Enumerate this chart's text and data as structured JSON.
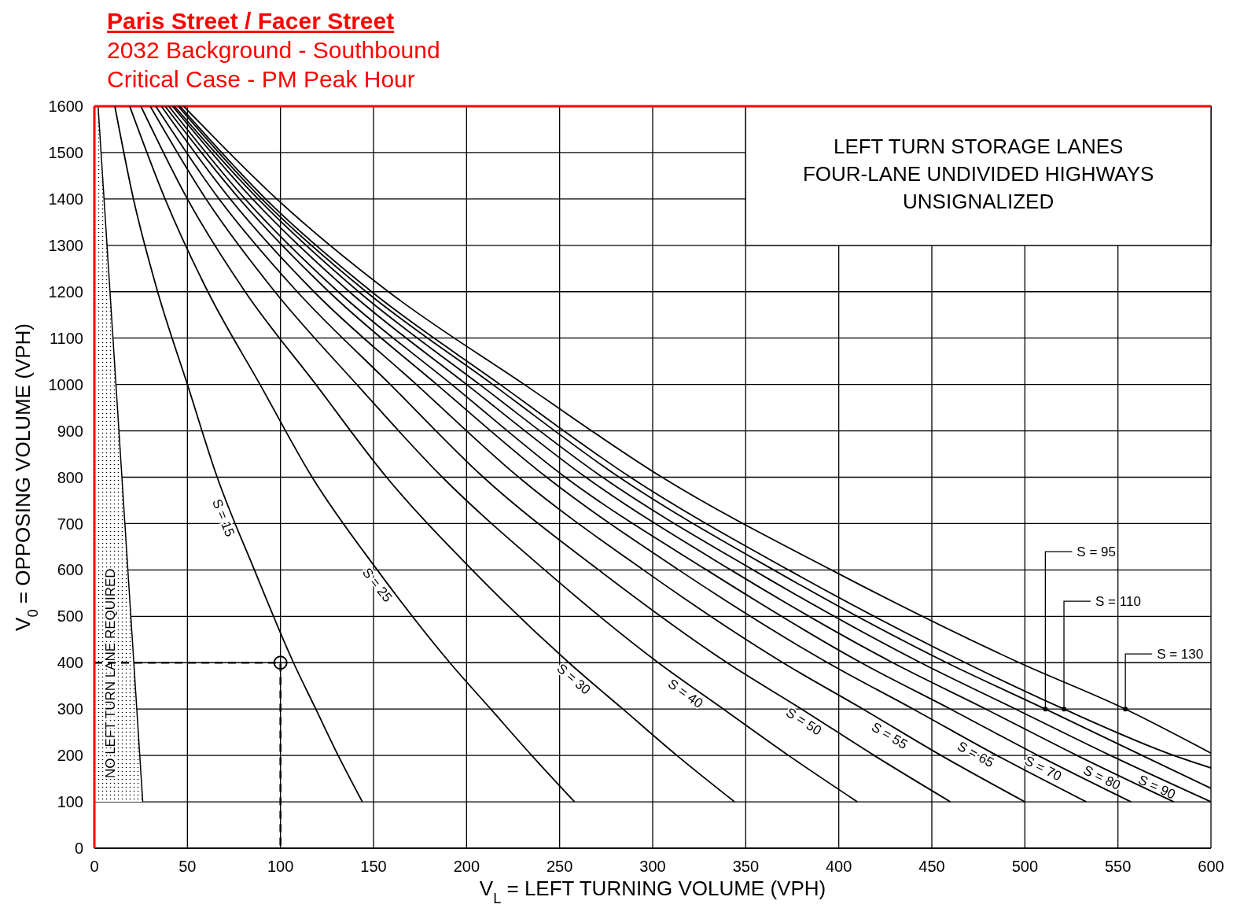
{
  "chart_data": {
    "type": "line",
    "title": "Paris Street / Facer Street",
    "subtitle": "2032 Background - Southbound\nCritical Case - PM Peak Hour",
    "xlabel": "V$_{L}$ = LEFT TURNING VOLUME (VPH)",
    "ylabel": "V$_{0}$ = OPPOSING VOLUME (VPH)",
    "annotations": [
      "LEFT TURN STORAGE LANES\nFOUR-LANE UNDIVIDED HIGHWAYS\nUNSIGNALIZED"
    ],
    "xlim": [
      0,
      600
    ],
    "xticks": [
      0,
      50,
      100,
      150,
      200,
      250,
      300,
      350,
      400,
      450,
      500,
      550,
      600
    ],
    "ylim": [
      0,
      1600
    ],
    "yticks": [
      0,
      100,
      200,
      300,
      400,
      500,
      600,
      700,
      800,
      900,
      1000,
      1100,
      1200,
      1300,
      1400,
      1500,
      1600
    ],
    "grid": true,
    "marker": "none",
    "series": [
      {
        "type": "area",
        "name": "NO LEFT TURN LANE REQUIRED",
        "color": "#000000",
        "x": [
          2,
          26
        ],
        "values": [
          1600,
          100
        ]
      },
      {
        "name": "S = 15",
        "color": "#000000",
        "x": [
          11,
          21,
          34,
          50,
          66,
          86,
          107,
          119,
          131,
          144
        ],
        "values": [
          1600,
          1400,
          1200,
          1000,
          800,
          600,
          400,
          300,
          200,
          100
        ]
      },
      {
        "name": "S = 25",
        "color": "#000000",
        "x": [
          19,
          38,
          61,
          89,
          117,
          152,
          191,
          213,
          235,
          258
        ],
        "values": [
          1600,
          1400,
          1200,
          1000,
          800,
          600,
          400,
          300,
          200,
          100
        ]
      },
      {
        "name": "S = 30",
        "color": "#000000",
        "x": [
          25,
          50,
          81,
          119,
          157,
          203,
          255,
          284,
          313,
          344
        ],
        "values": [
          1600,
          1400,
          1200,
          1000,
          800,
          600,
          400,
          300,
          200,
          100
        ]
      },
      {
        "name": "S = 40",
        "color": "#000000",
        "x": [
          30,
          60,
          97,
          141,
          187,
          242,
          303,
          338,
          373,
          410
        ],
        "values": [
          1600,
          1400,
          1200,
          1000,
          800,
          600,
          400,
          300,
          200,
          100
        ]
      },
      {
        "name": "S = 50",
        "color": "#000000",
        "x": [
          33,
          67,
          109,
          159,
          209,
          271,
          340,
          380,
          419,
          460
        ],
        "values": [
          1600,
          1400,
          1200,
          1000,
          800,
          600,
          400,
          300,
          200,
          100
        ]
      },
      {
        "name": "S = 55",
        "color": "#000000",
        "x": [
          36,
          73,
          118,
          173,
          228,
          295,
          370,
          413,
          455,
          500
        ],
        "values": [
          1600,
          1400,
          1200,
          1000,
          800,
          600,
          400,
          300,
          200,
          100
        ]
      },
      {
        "name": "S = 65",
        "color": "#000000",
        "x": [
          38,
          78,
          126,
          184,
          243,
          314,
          394,
          440,
          485,
          533
        ],
        "values": [
          1600,
          1400,
          1200,
          1000,
          800,
          600,
          400,
          300,
          200,
          100
        ]
      },
      {
        "name": "S = 70",
        "color": "#000000",
        "x": [
          40,
          81,
          131,
          192,
          253,
          329,
          412,
          460,
          507,
          557
        ],
        "values": [
          1600,
          1400,
          1200,
          1000,
          800,
          600,
          400,
          300,
          200,
          100
        ]
      },
      {
        "name": "S = 80",
        "color": "#000000",
        "x": [
          42,
          85,
          137,
          200,
          264,
          342,
          429,
          479,
          528,
          580
        ],
        "values": [
          1600,
          1400,
          1200,
          1000,
          800,
          600,
          400,
          300,
          200,
          100
        ]
      },
      {
        "name": "S = 90",
        "color": "#000000",
        "x": [
          43,
          88,
          142,
          207,
          273,
          354,
          444,
          495,
          546,
          600
        ],
        "values": [
          1600,
          1400,
          1200,
          1000,
          800,
          600,
          400,
          300,
          200,
          100
        ]
      },
      {
        "name": "S = 95",
        "color": "#000000",
        "x": [
          45,
          90,
          146,
          214,
          282,
          365,
          458,
          511,
          563,
          600
        ],
        "values": [
          1600,
          1400,
          1200,
          1000,
          800,
          600,
          400,
          300,
          200,
          129
        ]
      },
      {
        "name": "S = 110",
        "color": "#000000",
        "x": [
          46,
          92,
          149,
          218,
          288,
          373,
          468,
          521,
          580,
          600
        ],
        "values": [
          1600,
          1400,
          1200,
          1000,
          800,
          600,
          400,
          300,
          200,
          173
        ]
      },
      {
        "name": "S = 130",
        "color": "#000000",
        "x": [
          48,
          98,
          158,
          231,
          305,
          396,
          497,
          554,
          600
        ],
        "values": [
          1600,
          1400,
          1200,
          1000,
          800,
          600,
          400,
          300,
          205
        ]
      },
      {
        "type": "line",
        "line_style": "dashed",
        "color": "#000000",
        "x": [
          0,
          100,
          100
        ],
        "values": [
          400,
          400,
          0
        ]
      },
      {
        "type": "scatter",
        "marker": "circle",
        "color": "#000000",
        "x": [
          100
        ],
        "values": [
          400
        ]
      }
    ]
  }
}
